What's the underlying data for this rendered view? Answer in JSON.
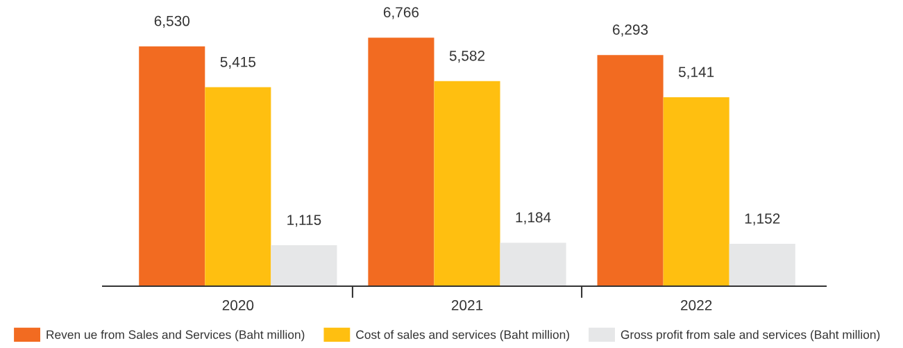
{
  "chart_data": {
    "type": "bar",
    "categories": [
      "2020",
      "2021",
      "2022"
    ],
    "series": [
      {
        "name": "Reven ue from Sales and Services (Baht million)",
        "color": "#f26b21",
        "values": [
          6530,
          6766,
          6293
        ],
        "value_labels": [
          "6,530",
          "6,766",
          "6,293"
        ]
      },
      {
        "name": "Cost of sales and services (Baht million)",
        "color": "#ffbf10",
        "values": [
          5415,
          5582,
          5141
        ],
        "value_labels": [
          "5,415",
          "5,582",
          "5,141"
        ]
      },
      {
        "name": "Gross profit from sale and services (Baht million)",
        "color": "#e6e7e8",
        "values": [
          1115,
          1184,
          1152
        ],
        "value_labels": [
          "1,115",
          "1,184",
          "1,152"
        ]
      }
    ],
    "legend": "bottom",
    "grid": false,
    "tick_labels": "x"
  }
}
